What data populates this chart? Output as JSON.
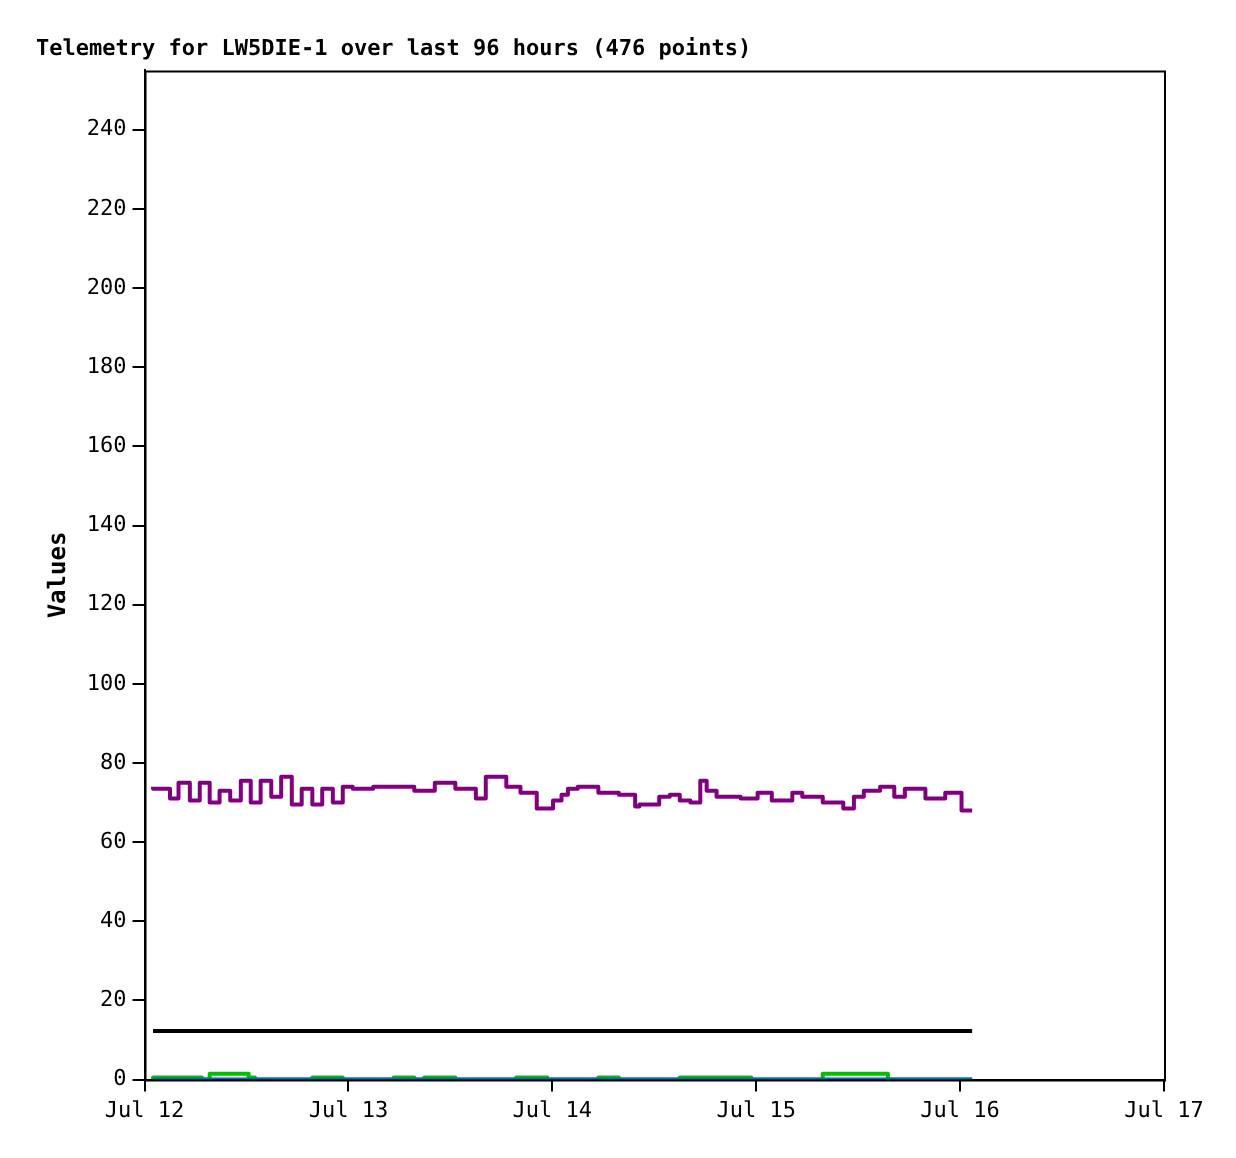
{
  "chart_data": {
    "type": "line",
    "title": "Telemetry for LW5DIE-1 over last 96 hours (476 points)",
    "ylabel": "Values",
    "xlim": [
      "--07-12",
      "--07-17"
    ],
    "xticks": [
      {
        "value": "--07-12",
        "label": "Jul 12"
      },
      {
        "value": "--07-13",
        "label": "Jul 13"
      },
      {
        "value": "--07-14",
        "label": "Jul 14"
      },
      {
        "value": "--07-15",
        "label": "Jul 15"
      },
      {
        "value": "--07-16",
        "label": "Jul 16"
      },
      {
        "value": "--07-17",
        "label": "Jul 17"
      }
    ],
    "ylim": [
      0,
      255
    ],
    "yticks": [
      0,
      20,
      40,
      60,
      80,
      100,
      120,
      140,
      160,
      180,
      200,
      220,
      240
    ],
    "grid": false,
    "legend": false,
    "marker": "none",
    "line_style": "solid",
    "series": [
      {
        "type": "step",
        "color": "#800080",
        "x": [
          "--07-12T01:00",
          "--07-12T03:00",
          "--07-12T04:00",
          "--07-12T05:20",
          "--07-12T06:30",
          "--07-12T07:40",
          "--07-12T08:50",
          "--07-12T10:05",
          "--07-12T11:20",
          "--07-12T12:30",
          "--07-12T13:40",
          "--07-12T14:55",
          "--07-12T16:05",
          "--07-12T17:20",
          "--07-12T18:30",
          "--07-12T19:45",
          "--07-12T20:55",
          "--07-12T22:10",
          "--07-12T23:20",
          "--07-13T00:30",
          "--07-13T02:55",
          "--07-13T05:20",
          "--07-13T07:45",
          "--07-13T10:10",
          "--07-13T12:35",
          "--07-13T15:00",
          "--07-13T16:10",
          "--07-13T18:35",
          "--07-13T20:15",
          "--07-13T22:10",
          "--07-14T00:05",
          "--07-14T01:05",
          "--07-14T01:50",
          "--07-14T03:00",
          "--07-14T05:25",
          "--07-14T07:50",
          "--07-14T09:45",
          "--07-14T10:15",
          "--07-14T12:35",
          "--07-14T13:50",
          "--07-14T15:00",
          "--07-14T16:15",
          "--07-14T17:25",
          "--07-14T18:10",
          "--07-14T19:20",
          "--07-14T22:10",
          "--07-15T00:10",
          "--07-15T01:50",
          "--07-15T04:15",
          "--07-15T05:25",
          "--07-15T07:50",
          "--07-15T10:15",
          "--07-15T11:30",
          "--07-15T12:40",
          "--07-15T14:35",
          "--07-15T16:15",
          "--07-15T17:30",
          "--07-15T19:55",
          "--07-15T22:15",
          "--07-16T00:10",
          "--07-16T01:25"
        ],
        "values": [
          74,
          73.5,
          71,
          75,
          70.5,
          75,
          70,
          73,
          70.5,
          75.5,
          70,
          75.5,
          71.5,
          76.5,
          69.5,
          73.5,
          69.5,
          73.5,
          70,
          74,
          73.5,
          74,
          74,
          73,
          75,
          73.5,
          71,
          76.5,
          74,
          72.5,
          68.5,
          70.5,
          72,
          73.5,
          74,
          72.5,
          72,
          69,
          69.5,
          71.5,
          72,
          70.5,
          70,
          75.5,
          73,
          71.5,
          71,
          72.5,
          70.5,
          72.5,
          71.5,
          70,
          68.5,
          71.5,
          73,
          74,
          71.5,
          73.5,
          71,
          72.5,
          68
        ]
      },
      {
        "color": "#000000",
        "x": [
          "--07-12T01:00",
          "--07-16T01:25"
        ],
        "values": [
          12.3,
          12.3
        ]
      },
      {
        "type": "step",
        "color": "#00c000",
        "x": [
          "--07-12T01:00",
          "--07-12T06:45",
          "--07-12T07:40",
          "--07-12T12:15",
          "--07-12T13:00",
          "--07-12T19:45",
          "--07-12T23:20",
          "--07-13T05:20",
          "--07-13T07:45",
          "--07-13T08:55",
          "--07-13T12:35",
          "--07-13T19:45",
          "--07-13T23:25",
          "--07-14T05:25",
          "--07-14T07:50",
          "--07-14T15:00",
          "--07-14T23:25",
          "--07-15T07:50",
          "--07-15T15:30",
          "--07-15T16:45",
          "--07-16T01:25"
        ],
        "values": [
          0,
          0.5,
          0,
          1.5,
          0.5,
          0,
          0.5,
          0,
          0.5,
          0,
          0.5,
          0,
          0.5,
          0,
          0.5,
          0,
          0.5,
          0,
          1.5,
          0,
          0
        ]
      },
      {
        "color": "#0066cc",
        "x": [
          "--07-12T01:00",
          "--07-16T01:25"
        ],
        "values": [
          0,
          0
        ]
      }
    ]
  }
}
